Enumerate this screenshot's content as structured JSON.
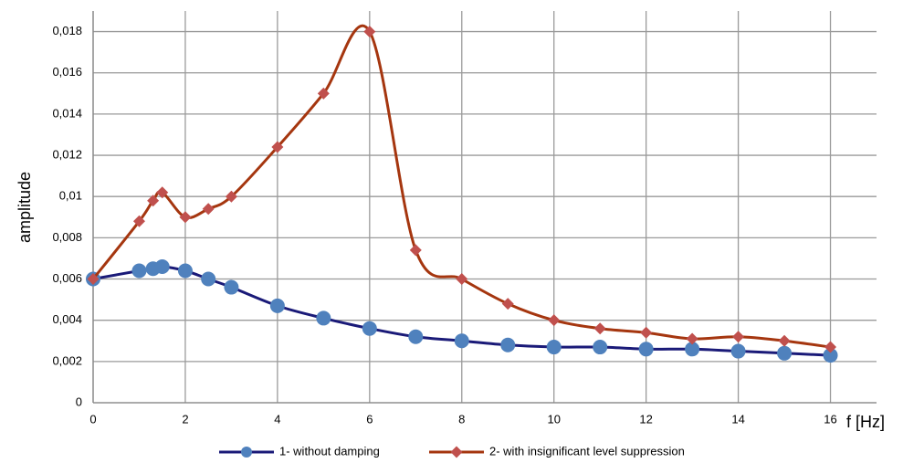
{
  "chart_data": {
    "type": "line",
    "x": [
      0,
      1,
      1.3,
      1.5,
      2,
      2.5,
      3,
      4,
      5,
      6,
      7,
      8,
      9,
      10,
      11,
      12,
      13,
      14,
      15,
      16
    ],
    "series": [
      {
        "name": "1- without damping",
        "color": "#1a1a78",
        "marker_color": "#4f81bd",
        "marker": "circle",
        "values": [
          0.006,
          0.0064,
          0.0065,
          0.0066,
          0.0064,
          0.006,
          0.0056,
          0.0047,
          0.0041,
          0.0036,
          0.0032,
          0.003,
          0.0028,
          0.0027,
          0.0027,
          0.0026,
          0.0026,
          0.0025,
          0.0024,
          0.0023
        ]
      },
      {
        "name": "2- with insignificant level suppression",
        "color": "#a5360f",
        "marker_color": "#c0504d",
        "marker": "diamond",
        "values": [
          0.006,
          0.0088,
          0.0098,
          0.0102,
          0.009,
          0.0094,
          0.01,
          0.0124,
          0.015,
          0.018,
          0.0074,
          0.006,
          0.0048,
          0.004,
          0.0036,
          0.0034,
          0.0031,
          0.0032,
          0.003,
          0.0027
        ]
      }
    ],
    "x_label": "f [Hz]",
    "y_label": "amplitude",
    "xlim": [
      0,
      17
    ],
    "xticks": [
      0,
      2,
      4,
      6,
      8,
      10,
      12,
      14,
      16
    ],
    "ylim": [
      0,
      0.019
    ],
    "yticks": [
      0,
      {
        "value": 0.002,
        "label": "0,002"
      },
      {
        "value": 0.004,
        "label": "0,004"
      },
      {
        "value": 0.006,
        "label": "0,006"
      },
      {
        "value": 0.008,
        "label": "0,008"
      },
      {
        "value": 0.01,
        "label": "0,01"
      },
      {
        "value": 0.012,
        "label": "0,012"
      },
      {
        "value": 0.014,
        "label": "0,014"
      },
      {
        "value": 0.016,
        "label": "0,016"
      },
      {
        "value": 0.018,
        "label": "0,018"
      }
    ],
    "grid": true,
    "smooth": true,
    "legend": "bottom"
  }
}
